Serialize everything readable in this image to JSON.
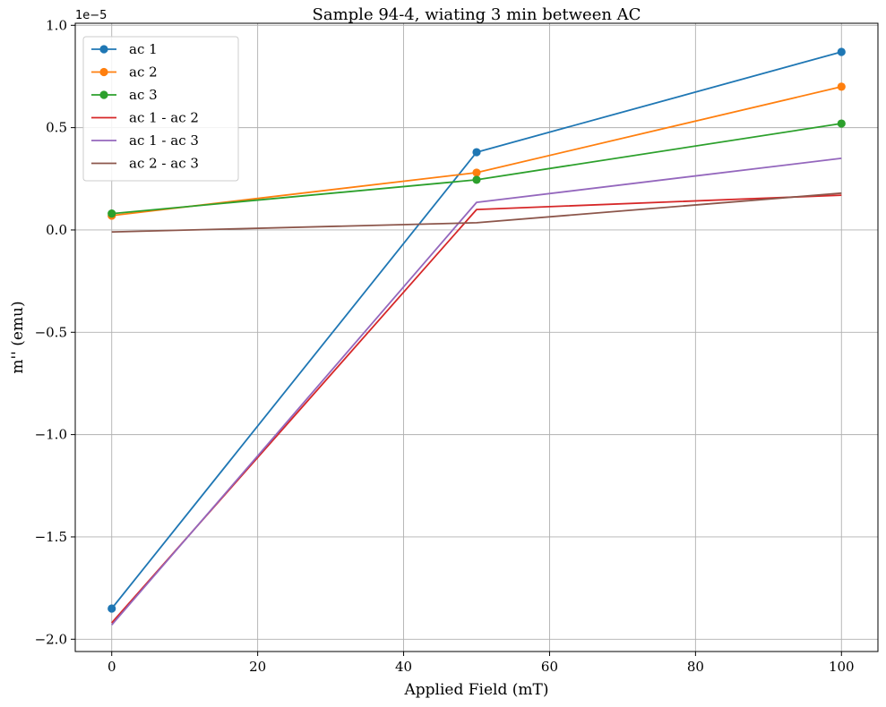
{
  "chart_data": {
    "type": "line",
    "title": "Sample 94-4, wiating 3 min between AC",
    "xlabel": "Applied Field (mT)",
    "ylabel": "m'' (emu)",
    "y_offset_label": "1e−5",
    "xlim": [
      -5,
      105
    ],
    "ylim": [
      -2.06,
      1.01
    ],
    "x_ticks": [
      0,
      20,
      40,
      60,
      80,
      100
    ],
    "x_tick_labels": [
      "0",
      "20",
      "40",
      "60",
      "80",
      "100"
    ],
    "y_ticks": [
      -2.0,
      -1.5,
      -1.0,
      -0.5,
      0.0,
      0.5,
      1.0
    ],
    "y_tick_labels": [
      "−2.0",
      "−1.5",
      "−1.0",
      "−0.5",
      "0.0",
      "0.5",
      "1.0"
    ],
    "y_scale_note": "values in units of 1e-5 emu",
    "grid": true,
    "legend_position": "top-left",
    "x": [
      0,
      50,
      100
    ],
    "series": [
      {
        "name": "ac 1",
        "values": [
          -1.85,
          0.38,
          0.87
        ],
        "color": "#1f77b4",
        "markers": true
      },
      {
        "name": "ac 2",
        "values": [
          0.07,
          0.28,
          0.7
        ],
        "color": "#ff7f0e",
        "markers": true
      },
      {
        "name": "ac 3",
        "values": [
          0.08,
          0.245,
          0.52
        ],
        "color": "#2ca02c",
        "markers": true
      },
      {
        "name": "ac 1 - ac 2",
        "values": [
          -1.92,
          0.1,
          0.17
        ],
        "color": "#d62728",
        "markers": false
      },
      {
        "name": "ac 1 - ac 3",
        "values": [
          -1.93,
          0.135,
          0.35
        ],
        "color": "#9467bd",
        "markers": false
      },
      {
        "name": "ac 2 - ac 3",
        "values": [
          -0.01,
          0.035,
          0.18
        ],
        "color": "#8c564b",
        "markers": false
      }
    ]
  }
}
